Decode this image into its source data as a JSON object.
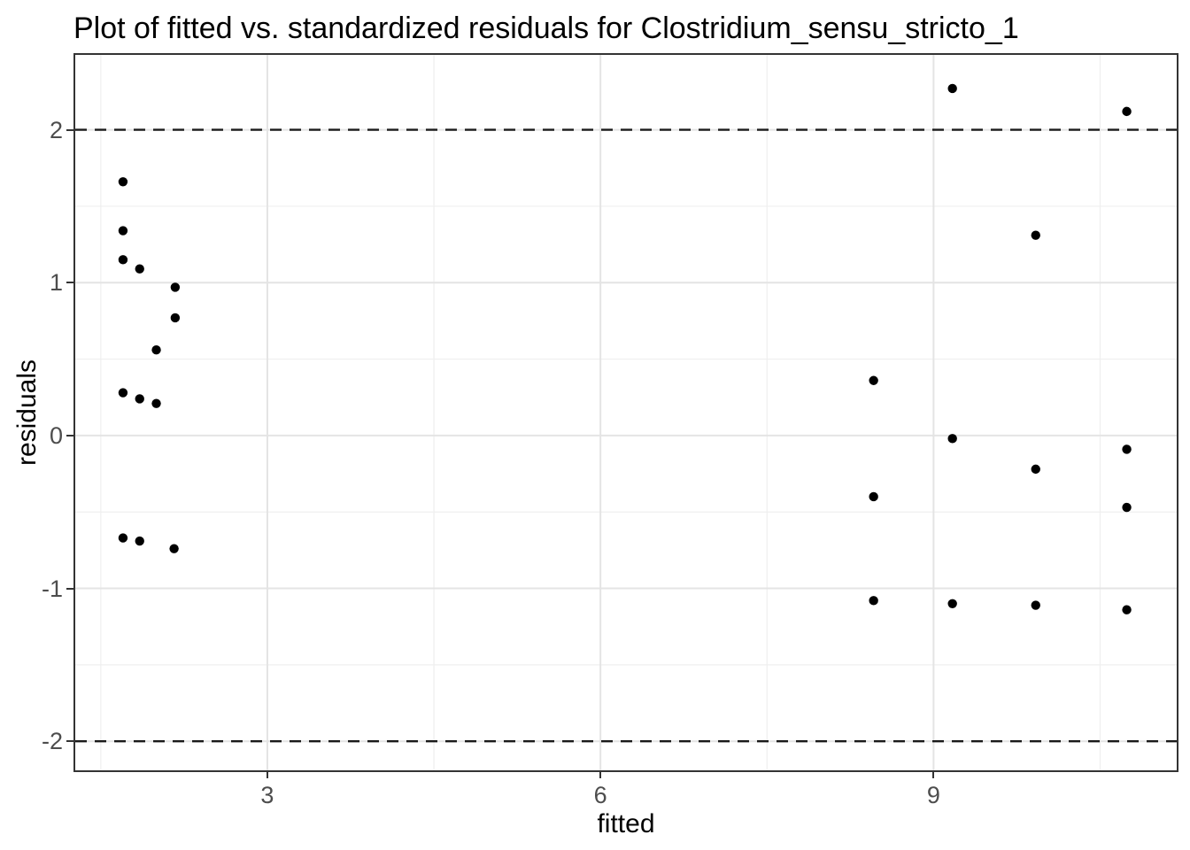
{
  "chart_data": {
    "type": "scatter",
    "title": "Plot of fitted vs. standardized residuals for Clostridium_sensu_stricto_1",
    "xlabel": "fitted",
    "ylabel": "residuals",
    "xlim": [
      1.27,
      11.19
    ],
    "ylim": [
      -2.19,
      2.49
    ],
    "grid": "on",
    "legend": "none",
    "x_major_ticks": [
      {
        "value": 3,
        "label": "3"
      },
      {
        "value": 6,
        "label": "6"
      },
      {
        "value": 9,
        "label": "9"
      }
    ],
    "x_minor_gridlines": [
      1.5,
      4.5,
      7.5,
      10.5
    ],
    "y_major_ticks": [
      {
        "value": 2,
        "label": "2"
      },
      {
        "value": 1,
        "label": "1"
      },
      {
        "value": 0,
        "label": "0"
      },
      {
        "value": -1,
        "label": "-1"
      },
      {
        "value": -2,
        "label": "-2"
      }
    ],
    "y_minor_gridlines": [
      1.5,
      0.5,
      -0.5,
      -1.5
    ],
    "hlines": [
      {
        "y": 2,
        "style": "dashed"
      },
      {
        "y": -2,
        "style": "dashed"
      }
    ],
    "points": [
      {
        "x": 1.7,
        "y": 1.66
      },
      {
        "x": 1.7,
        "y": 1.34
      },
      {
        "x": 1.7,
        "y": 1.15
      },
      {
        "x": 1.85,
        "y": 1.09
      },
      {
        "x": 2.17,
        "y": 0.97
      },
      {
        "x": 2.17,
        "y": 0.77
      },
      {
        "x": 2.0,
        "y": 0.56
      },
      {
        "x": 1.7,
        "y": 0.28
      },
      {
        "x": 1.85,
        "y": 0.24
      },
      {
        "x": 2.0,
        "y": 0.21
      },
      {
        "x": 1.7,
        "y": -0.67
      },
      {
        "x": 1.85,
        "y": -0.69
      },
      {
        "x": 2.16,
        "y": -0.74
      },
      {
        "x": 8.46,
        "y": 0.36
      },
      {
        "x": 8.46,
        "y": -0.4
      },
      {
        "x": 8.46,
        "y": -1.08
      },
      {
        "x": 9.17,
        "y": 2.27
      },
      {
        "x": 9.17,
        "y": -0.02
      },
      {
        "x": 9.17,
        "y": -1.1
      },
      {
        "x": 9.92,
        "y": 1.31
      },
      {
        "x": 9.92,
        "y": -0.22
      },
      {
        "x": 9.92,
        "y": -1.11
      },
      {
        "x": 10.74,
        "y": 2.12
      },
      {
        "x": 10.74,
        "y": -0.09
      },
      {
        "x": 10.74,
        "y": -0.47
      },
      {
        "x": 10.74,
        "y": -1.14
      }
    ],
    "point_radius": 5.2,
    "colors": {
      "point": "#000000",
      "dashed_line": "#1a1a1a",
      "grid_major": "#e4e4e4",
      "grid_minor": "#efefef",
      "panel_border": "#343434",
      "tick_mark": "#333333",
      "tick_text": "#4d4d4d",
      "title_text": "#000000"
    }
  }
}
